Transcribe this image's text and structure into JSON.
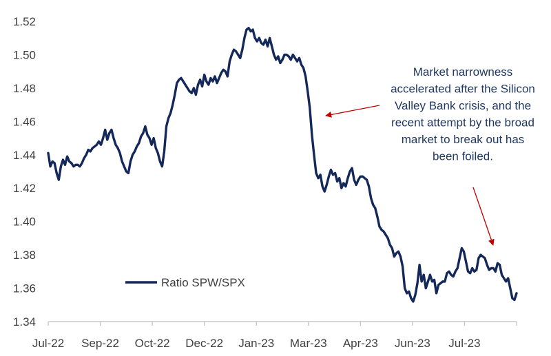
{
  "chart_data": {
    "type": "line",
    "title": "",
    "xlabel": "",
    "ylabel": "",
    "ylim": [
      1.34,
      1.52
    ],
    "y_ticks": [
      "1.34",
      "1.36",
      "1.38",
      "1.40",
      "1.42",
      "1.44",
      "1.46",
      "1.48",
      "1.50",
      "1.52"
    ],
    "x_tick_labels": [
      "Jul-22",
      "Sep-22",
      "Oct-22",
      "Dec-22",
      "Jan-23",
      "Mar-23",
      "Apr-23",
      "Jun-23",
      "Jul-23"
    ],
    "grid": false,
    "legend_position": "bottom-left",
    "colors": {
      "series": "#14285a",
      "axis": "#bfbfbf",
      "arrow": "#c00000",
      "annotation": "#1f3864"
    },
    "series": [
      {
        "name": "Ratio SPW/SPX",
        "x_start": "Jul-22",
        "values": [
          1.441,
          1.433,
          1.436,
          1.435,
          1.429,
          1.425,
          1.433,
          1.437,
          1.434,
          1.439,
          1.436,
          1.435,
          1.433,
          1.434,
          1.434,
          1.433,
          1.435,
          1.438,
          1.44,
          1.443,
          1.442,
          1.444,
          1.445,
          1.446,
          1.448,
          1.446,
          1.45,
          1.455,
          1.449,
          1.453,
          1.455,
          1.45,
          1.446,
          1.444,
          1.441,
          1.436,
          1.433,
          1.43,
          1.429,
          1.436,
          1.44,
          1.442,
          1.445,
          1.447,
          1.451,
          1.453,
          1.457,
          1.452,
          1.45,
          1.446,
          1.45,
          1.444,
          1.441,
          1.436,
          1.433,
          1.442,
          1.457,
          1.462,
          1.465,
          1.47,
          1.476,
          1.483,
          1.485,
          1.486,
          1.484,
          1.482,
          1.48,
          1.478,
          1.477,
          1.48,
          1.476,
          1.482,
          1.485,
          1.481,
          1.488,
          1.484,
          1.482,
          1.486,
          1.484,
          1.487,
          1.483,
          1.486,
          1.489,
          1.491,
          1.49,
          1.487,
          1.496,
          1.5,
          1.503,
          1.502,
          1.5,
          1.498,
          1.503,
          1.51,
          1.515,
          1.516,
          1.514,
          1.515,
          1.51,
          1.508,
          1.51,
          1.507,
          1.506,
          1.509,
          1.505,
          1.51,
          1.505,
          1.5,
          1.497,
          1.499,
          1.495,
          1.497,
          1.5,
          1.5,
          1.499,
          1.497,
          1.5,
          1.498,
          1.496,
          1.498,
          1.494,
          1.492,
          1.487,
          1.478,
          1.468,
          1.452,
          1.44,
          1.429,
          1.426,
          1.428,
          1.421,
          1.418,
          1.422,
          1.427,
          1.431,
          1.428,
          1.429,
          1.424,
          1.426,
          1.42,
          1.423,
          1.421,
          1.426,
          1.43,
          1.432,
          1.425,
          1.422,
          1.425,
          1.427,
          1.427,
          1.426,
          1.425,
          1.421,
          1.414,
          1.41,
          1.408,
          1.403,
          1.397,
          1.395,
          1.394,
          1.392,
          1.39,
          1.386,
          1.384,
          1.379,
          1.381,
          1.382,
          1.379,
          1.373,
          1.36,
          1.357,
          1.358,
          1.354,
          1.352,
          1.356,
          1.363,
          1.374,
          1.364,
          1.368,
          1.36,
          1.364,
          1.368,
          1.364,
          1.365,
          1.357,
          1.362,
          1.363,
          1.364,
          1.364,
          1.369,
          1.37,
          1.368,
          1.367,
          1.37,
          1.372,
          1.378,
          1.384,
          1.382,
          1.376,
          1.37,
          1.369,
          1.372,
          1.37,
          1.371,
          1.378,
          1.38,
          1.379,
          1.378,
          1.374,
          1.371,
          1.372,
          1.372,
          1.37,
          1.375,
          1.374,
          1.368,
          1.366,
          1.364,
          1.366,
          1.36,
          1.354,
          1.353,
          1.357
        ]
      }
    ],
    "annotation_lines": [
      "Market narrowness",
      "accelerated after the Silicon",
      "Valley Bank crisis, and the",
      "recent attempt by the broad",
      "market to break out has",
      "been foiled."
    ],
    "arrows": [
      {
        "from_index": 132,
        "from_value": 1.463,
        "to_index": 129,
        "to_value": 1.463
      },
      {
        "from_index": 205,
        "from_value": 1.403,
        "to_index": 220,
        "to_value": 1.375
      }
    ]
  }
}
